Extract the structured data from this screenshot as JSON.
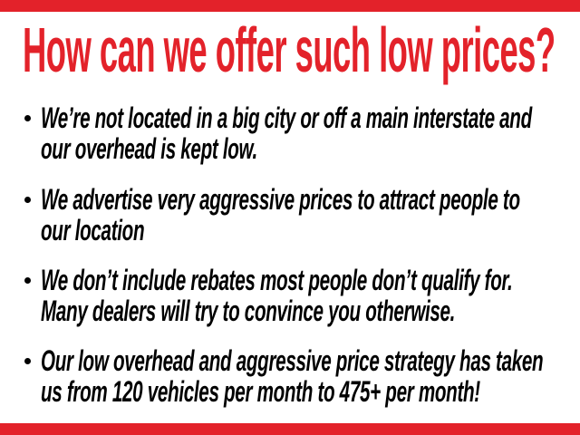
{
  "page": {
    "type": "presentation-slide",
    "background_color": "#ffffff",
    "accent_red": "#e3222a",
    "text_color": "#000000"
  },
  "header": {
    "title": "How can we offer such low prices?"
  },
  "bullets": [
    {
      "lines": [
        "We’re not located in a big city or off a main interstate and",
        "our overhead is kept low."
      ]
    },
    {
      "lines": [
        "We advertise very aggressive prices to attract people to",
        "our location"
      ]
    },
    {
      "lines": [
        "We don’t include rebates most people don’t qualify for.",
        "Many dealers will try to convince you otherwise."
      ]
    },
    {
      "lines": [
        "Our low overhead and aggressive price strategy has taken",
        "us from 120 vehicles per month to 475+ per month!"
      ]
    }
  ]
}
